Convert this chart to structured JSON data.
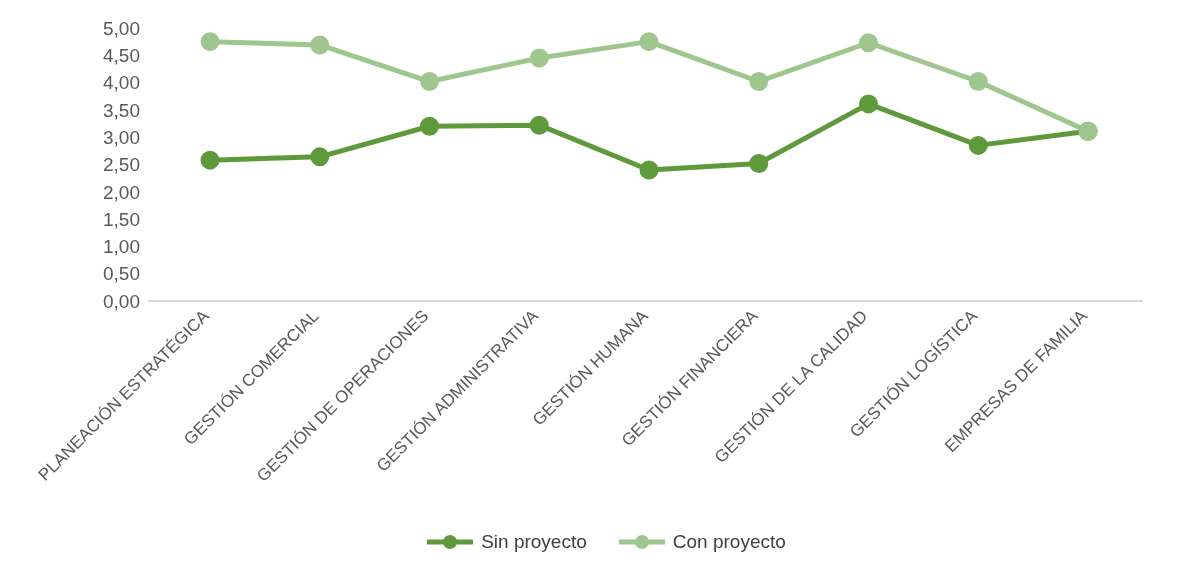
{
  "chart_data": {
    "type": "line",
    "categories": [
      "PLANEACIÓN ESTRATÉGICA",
      "GESTIÓN COMERCIAL",
      "GESTIÓN DE OPERACIONES",
      "GESTIÓN ADMINISTRATIVA",
      "GESTIÓN HUMANA",
      "GESTIÓN FINANCIERA",
      "GESTIÓN DE LA CALIDAD",
      "GESTIÓN LOGÍSTICA",
      "EMPRESAS DE FAMILIA"
    ],
    "series": [
      {
        "name": "Sin proyecto",
        "color": "#5e9a3b",
        "values": [
          2.58,
          2.64,
          3.2,
          3.22,
          2.4,
          2.52,
          3.61,
          2.85,
          3.11
        ]
      },
      {
        "name": "Con proyecto",
        "color": "#a0c68f",
        "values": [
          4.75,
          4.69,
          4.02,
          4.45,
          4.75,
          4.02,
          4.73,
          4.02,
          3.11
        ]
      }
    ],
    "ylim": [
      0,
      5
    ],
    "yticks": [
      {
        "value": 0,
        "label": "0,00"
      },
      {
        "value": 0.5,
        "label": "0,50"
      },
      {
        "value": 1,
        "label": "1,00"
      },
      {
        "value": 1.5,
        "label": "1,50"
      },
      {
        "value": 2,
        "label": "2,00"
      },
      {
        "value": 2.5,
        "label": "2,50"
      },
      {
        "value": 3,
        "label": "3,00"
      },
      {
        "value": 3.5,
        "label": "3,50"
      },
      {
        "value": 4,
        "label": "4,00"
      },
      {
        "value": 4.5,
        "label": "4,50"
      },
      {
        "value": 5,
        "label": "5,00"
      }
    ],
    "grid": false,
    "legend": "bottom",
    "marker": "circle",
    "line_style": "solid"
  }
}
